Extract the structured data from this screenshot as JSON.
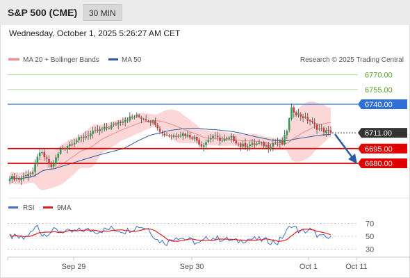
{
  "header": {
    "instrument": "S&P 500 (CME)",
    "timeframe": "30 MIN"
  },
  "datetime": "Wednesday, October 1, 2025 5:26:27 AM CET",
  "legend": {
    "bb_label": "MA 20 + Bollinger Bands",
    "ma50_label": "MA 50",
    "credit": "Research © 2025 Trading Central",
    "rsi_label": "RSI",
    "rsi_ma_label": "9MA"
  },
  "colors": {
    "resistance_green": "#5aa02c",
    "pivot_blue": "#2f6fd6",
    "support_red": "#e00000",
    "last_price": "#333333",
    "bull_candle": "#2e9c4f",
    "bear_candle": "#d23a3a",
    "bollinger_fill": "#fbd7d7",
    "ma20": "#f08a8a",
    "ma50": "#2c5b9e",
    "rsi_line": "#3a6fc4",
    "rsi_ma": "#e02020",
    "arrow": "#2a5aa0"
  },
  "chart_data": [
    {
      "type": "candlestick",
      "title": "S&P 500 (CME)",
      "timeframe": "30 MIN",
      "x_ticks": [
        "Sep 29",
        "Sep 30",
        "Oct 1",
        "Oct 11"
      ],
      "ylim": [
        6655,
        6785
      ],
      "levels": [
        {
          "value": 6770.0,
          "label": "6770.00",
          "kind": "resistance"
        },
        {
          "value": 6755.0,
          "label": "6755.00",
          "kind": "resistance"
        },
        {
          "value": 6740.0,
          "label": "6740.00",
          "kind": "pivot"
        },
        {
          "value": 6711.0,
          "label": "6711.00",
          "kind": "last"
        },
        {
          "value": 6695.0,
          "label": "6695.00",
          "kind": "support"
        },
        {
          "value": 6680.0,
          "label": "6680.00",
          "kind": "support"
        }
      ],
      "close_anchors": [
        [
          0,
          6666
        ],
        [
          4,
          6664
        ],
        [
          8,
          6670
        ],
        [
          10,
          6669
        ],
        [
          12,
          6688
        ],
        [
          14,
          6690
        ],
        [
          18,
          6676
        ],
        [
          22,
          6694
        ],
        [
          27,
          6701
        ],
        [
          32,
          6707
        ],
        [
          38,
          6713
        ],
        [
          44,
          6718
        ],
        [
          50,
          6725
        ],
        [
          55,
          6728
        ],
        [
          60,
          6724
        ],
        [
          63,
          6721
        ],
        [
          66,
          6710
        ],
        [
          70,
          6708
        ],
        [
          75,
          6710
        ],
        [
          80,
          6706
        ],
        [
          83,
          6698
        ],
        [
          88,
          6708
        ],
        [
          92,
          6703
        ],
        [
          96,
          6706
        ],
        [
          100,
          6698
        ],
        [
          104,
          6699
        ],
        [
          108,
          6700
        ],
        [
          112,
          6697
        ],
        [
          115,
          6702
        ],
        [
          118,
          6700
        ],
        [
          120,
          6714
        ],
        [
          122,
          6735
        ],
        [
          124,
          6731
        ],
        [
          127,
          6727
        ],
        [
          130,
          6723
        ],
        [
          133,
          6716
        ],
        [
          136,
          6713
        ],
        [
          139,
          6711
        ]
      ],
      "series": [
        {
          "name": "MA 20 + Bollinger Bands",
          "kind": "ma20_bands"
        },
        {
          "name": "MA 50",
          "kind": "ma50"
        }
      ]
    },
    {
      "type": "line",
      "title": "RSI",
      "ylim": [
        20,
        80
      ],
      "y_ticks": [
        70,
        50,
        30
      ],
      "rsi_anchors": [
        [
          0,
          50
        ],
        [
          6,
          46
        ],
        [
          10,
          58
        ],
        [
          12,
          68
        ],
        [
          14,
          52
        ],
        [
          20,
          60
        ],
        [
          26,
          56
        ],
        [
          32,
          60
        ],
        [
          38,
          58
        ],
        [
          44,
          62
        ],
        [
          50,
          58
        ],
        [
          56,
          66
        ],
        [
          60,
          62
        ],
        [
          64,
          44
        ],
        [
          68,
          40
        ],
        [
          72,
          50
        ],
        [
          78,
          44
        ],
        [
          82,
          38
        ],
        [
          86,
          48
        ],
        [
          92,
          46
        ],
        [
          98,
          42
        ],
        [
          104,
          46
        ],
        [
          110,
          44
        ],
        [
          116,
          40
        ],
        [
          120,
          58
        ],
        [
          122,
          68
        ],
        [
          126,
          56
        ],
        [
          130,
          60
        ],
        [
          134,
          50
        ],
        [
          139,
          46
        ]
      ],
      "series": [
        {
          "name": "RSI"
        },
        {
          "name": "9MA"
        }
      ]
    }
  ]
}
